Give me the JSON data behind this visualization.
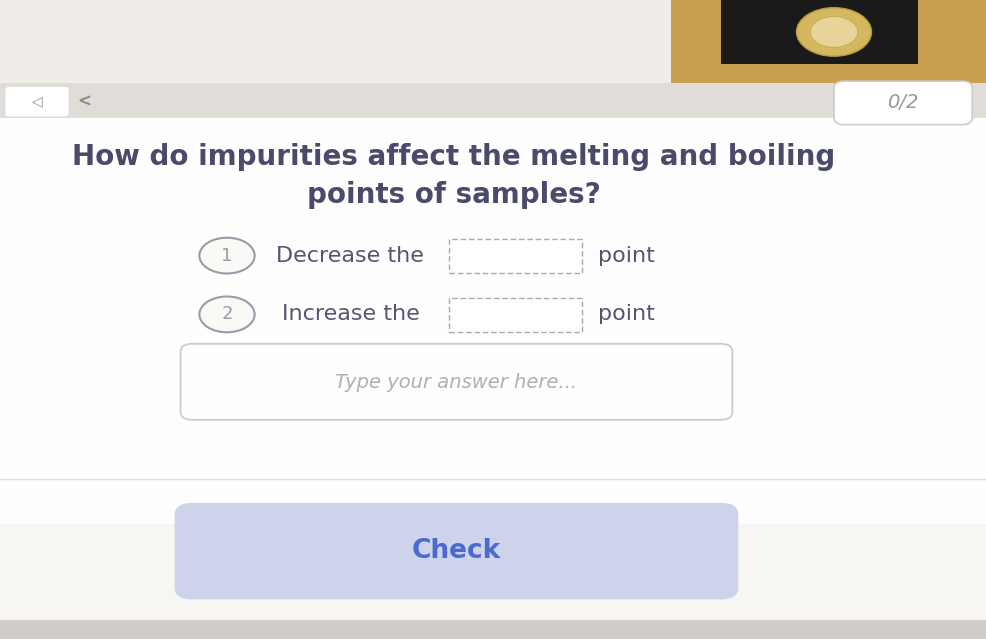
{
  "bg_color": "#f8f6f2",
  "main_bg": "#faf9f6",
  "nav_bar_color": "#e8e6e2",
  "nav_bar_height": 0.075,
  "title_text_line1": "How do impurities affect the melting and boiling",
  "title_text_line2": "points of samples?",
  "title_color": "#4a4a6a",
  "title_fontsize": 20,
  "option1_num": "1",
  "option1_text_before": "Decrease the",
  "option1_text_after": "point",
  "option2_num": "2",
  "option2_text_before": "Increase the",
  "option2_text_after": "point",
  "option_fontsize": 16,
  "option_color": "#555570",
  "circle_edge_color": "#999aaa",
  "circle_face_color": "#faf9f6",
  "dashed_box_color": "#aaaaaa",
  "textbox_placeholder": "Type your answer here...",
  "textbox_color": "#cccccc",
  "textbox_bg": "#fefefe",
  "textbox_fontsize": 14,
  "check_text": "Check",
  "check_text_color": "#4a6ad0",
  "check_bg": "#cdd3eb",
  "check_fontsize": 19,
  "score_text": "0/2",
  "score_color": "#999999",
  "score_fontsize": 14,
  "photo_bg_tan": "#c8a050",
  "photo_bg_dark": "#222222",
  "bottom_strip_color": "#d0ccc8"
}
